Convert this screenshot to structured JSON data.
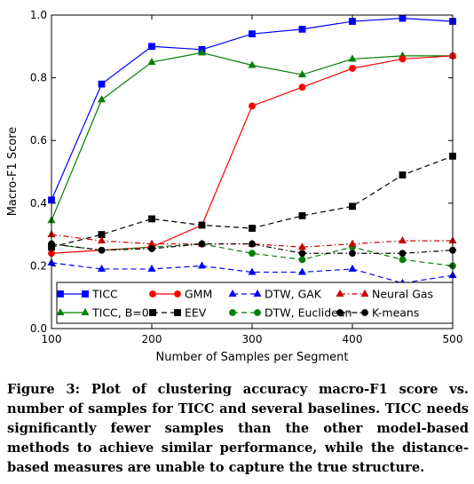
{
  "chart_data": {
    "type": "line",
    "title": "",
    "xlabel": "Number of Samples per Segment",
    "ylabel": "Macro-F1 Score",
    "xlim": [
      100,
      500
    ],
    "ylim": [
      0.0,
      1.0
    ],
    "xticks": [
      100,
      200,
      300,
      400,
      500
    ],
    "yticks": [
      0.0,
      0.2,
      0.4,
      0.6,
      0.8,
      1.0
    ],
    "ytick_labels": [
      "0.0",
      "0.2",
      "0.4",
      "0.6",
      "0.8",
      "1.0"
    ],
    "grid": false,
    "legend_placement": "lower-center",
    "x": [
      100,
      150,
      200,
      250,
      300,
      350,
      400,
      450,
      500
    ],
    "series": [
      {
        "name": "TICC",
        "color": "#0000ff",
        "marker": "square",
        "dash": "solid",
        "values": [
          0.41,
          0.78,
          0.9,
          0.89,
          0.94,
          0.955,
          0.98,
          0.99,
          0.98
        ]
      },
      {
        "name": "TICC, B=0",
        "color": "#007f00",
        "marker": "triangle-up",
        "dash": "solid",
        "values": [
          0.345,
          0.73,
          0.85,
          0.88,
          0.84,
          0.81,
          0.86,
          0.87,
          0.87
        ]
      },
      {
        "name": "GMM",
        "color": "#ff0000",
        "marker": "circle",
        "dash": "solid",
        "values": [
          0.24,
          0.25,
          0.26,
          0.33,
          0.71,
          0.77,
          0.83,
          0.86,
          0.87
        ]
      },
      {
        "name": "EEV",
        "color": "#000000",
        "marker": "square",
        "dash": "dashed",
        "values": [
          0.26,
          0.3,
          0.35,
          0.33,
          0.32,
          0.36,
          0.39,
          0.49,
          0.55
        ]
      },
      {
        "name": "DTW, GAK",
        "color": "#0000ff",
        "marker": "triangle-up",
        "dash": "dashed",
        "values": [
          0.21,
          0.19,
          0.19,
          0.2,
          0.18,
          0.18,
          0.19,
          0.145,
          0.17
        ]
      },
      {
        "name": "DTW, Euclidean",
        "color": "#007f00",
        "marker": "circle",
        "dash": "dashed",
        "values": [
          0.27,
          0.25,
          0.26,
          0.27,
          0.24,
          0.22,
          0.26,
          0.22,
          0.2
        ]
      },
      {
        "name": "Neural Gas",
        "color": "#cc0000",
        "marker": "triangle-up",
        "dash": "dashdot",
        "values": [
          0.3,
          0.28,
          0.27,
          0.27,
          0.27,
          0.26,
          0.27,
          0.28,
          0.28
        ]
      },
      {
        "name": "K-means",
        "color": "#000000",
        "marker": "circle",
        "dash": "dashdot",
        "values": [
          0.27,
          0.25,
          0.255,
          0.27,
          0.27,
          0.24,
          0.24,
          0.24,
          0.25
        ]
      }
    ]
  },
  "caption": {
    "text": "Figure 3: Plot of clustering accuracy macro-F1 score vs. number of samples for TICC and several baselines. TICC needs significantly fewer samples than the other model-based methods to achieve similar performance, while the distance-based measures are unable to capture the true structure."
  }
}
